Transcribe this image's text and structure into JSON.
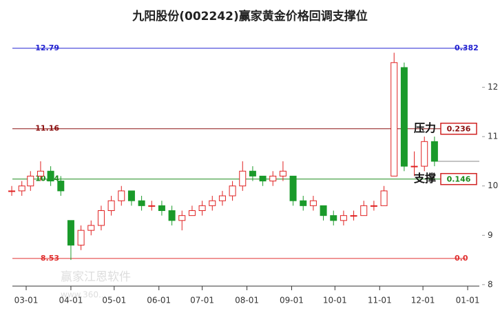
{
  "chart_data": {
    "type": "candlestick",
    "title": "九阳股份(002242)赢家黄金价格回调支撑位",
    "x": [
      "02-19",
      "02-26",
      "03-04",
      "03-11",
      "03-18",
      "03-25",
      "04-01",
      "04-08",
      "04-15",
      "04-22",
      "04-29",
      "05-06",
      "05-13",
      "05-20",
      "05-27",
      "06-03",
      "06-10",
      "06-17",
      "06-24",
      "07-01",
      "07-08",
      "07-15",
      "07-22",
      "07-29",
      "08-05",
      "08-12",
      "08-19",
      "08-26",
      "09-02",
      "09-09",
      "09-16",
      "09-23",
      "09-30",
      "10-07",
      "10-14",
      "10-21",
      "10-28",
      "11-04",
      "11-11",
      "11-18",
      "11-25",
      "12-02",
      "12-09"
    ],
    "open": [
      9.9,
      9.9,
      10.0,
      10.2,
      10.3,
      10.1,
      9.3,
      8.8,
      9.1,
      9.2,
      9.5,
      9.7,
      9.9,
      9.7,
      9.6,
      9.6,
      9.5,
      9.3,
      9.4,
      9.5,
      9.6,
      9.7,
      9.8,
      10.0,
      10.3,
      10.2,
      10.1,
      10.2,
      10.2,
      9.7,
      9.6,
      9.6,
      9.4,
      9.3,
      9.4,
      9.4,
      9.6,
      9.6,
      10.2,
      12.4,
      10.4,
      10.4,
      10.9
    ],
    "high": [
      10.0,
      10.1,
      10.3,
      10.5,
      10.4,
      10.2,
      9.3,
      9.2,
      9.3,
      9.6,
      9.8,
      10.0,
      9.9,
      9.8,
      9.7,
      9.7,
      9.6,
      9.5,
      9.6,
      9.7,
      9.8,
      9.9,
      10.1,
      10.5,
      10.4,
      10.2,
      10.3,
      10.5,
      10.2,
      9.8,
      9.8,
      9.6,
      9.5,
      9.5,
      9.5,
      9.7,
      9.7,
      10.0,
      12.7,
      12.5,
      10.7,
      11.0,
      11.0
    ],
    "low": [
      9.8,
      9.8,
      9.9,
      10.1,
      10.0,
      9.8,
      8.5,
      8.7,
      9.0,
      9.1,
      9.4,
      9.6,
      9.6,
      9.5,
      9.5,
      9.4,
      9.2,
      9.1,
      9.4,
      9.4,
      9.5,
      9.6,
      9.7,
      9.9,
      10.1,
      10.0,
      10.0,
      10.1,
      9.6,
      9.5,
      9.5,
      9.3,
      9.2,
      9.2,
      9.3,
      9.4,
      9.5,
      9.6,
      10.2,
      10.3,
      10.2,
      10.3,
      10.4
    ],
    "close": [
      9.9,
      10.0,
      10.2,
      10.3,
      10.1,
      9.9,
      8.8,
      9.1,
      9.2,
      9.5,
      9.7,
      9.9,
      9.7,
      9.6,
      9.6,
      9.5,
      9.3,
      9.4,
      9.5,
      9.6,
      9.7,
      9.8,
      10.0,
      10.3,
      10.2,
      10.1,
      10.2,
      10.3,
      9.7,
      9.6,
      9.7,
      9.4,
      9.3,
      9.4,
      9.4,
      9.6,
      9.6,
      9.9,
      12.5,
      10.4,
      10.4,
      10.9,
      10.5
    ],
    "up_color": "#e02020",
    "down_color": "#1a9a2a",
    "xticks": [
      "03-01",
      "04-01",
      "05-01",
      "06-01",
      "07-01",
      "08-01",
      "09-01",
      "10-01",
      "11-01",
      "12-01",
      "01-01"
    ],
    "ylim": [
      7.97,
      13.21
    ],
    "yticks": [
      8,
      9,
      10,
      11,
      12
    ],
    "levels": [
      {
        "price": 12.79,
        "ratio": 0.382,
        "color": "#2020d0"
      },
      {
        "price": 11.16,
        "ratio": 0.236,
        "color": "#8b1010",
        "tag": "压力"
      },
      {
        "price": 10.14,
        "ratio": 0.146,
        "color": "#1a8a1a",
        "tag": "支撑"
      },
      {
        "price": 8.53,
        "ratio": {
          "value": 0,
          "label": "0.0"
        },
        "color": "#e03030"
      }
    ],
    "watermark": "赢家江恩软件",
    "watermark_url": "www.360..."
  }
}
